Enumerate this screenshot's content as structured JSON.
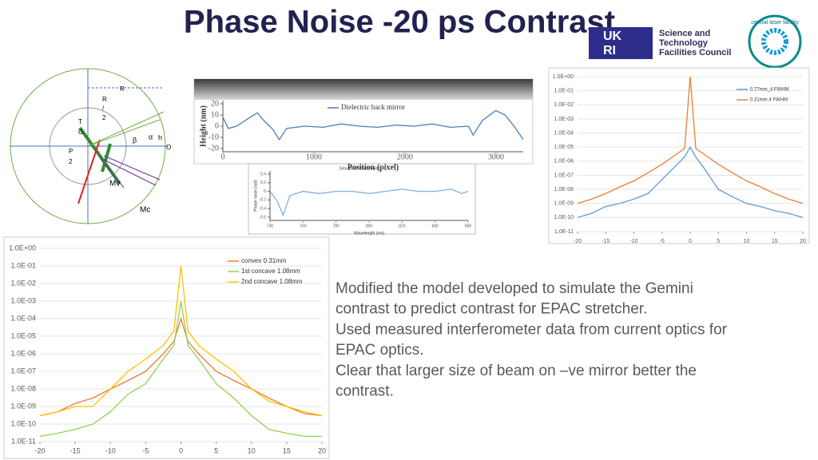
{
  "title": "Phase Noise -20 ps Contrast",
  "logos": {
    "ukri": [
      "UK",
      "RI"
    ],
    "stfc": [
      "Science and",
      "Technology",
      "Facilities Council"
    ],
    "clf": "central laser facility"
  },
  "diagram": {
    "labels": [
      "R",
      "R",
      "/",
      "2",
      "T",
      "G",
      "P",
      "2",
      "O",
      "Mv",
      "Mc",
      "β",
      "α",
      "h"
    ]
  },
  "text": [
    "Modified the model developed to simulate the Gemini",
    "contrast to predict contrast for EPAC stretcher.",
    "Used measured interferometer data from current optics for",
    "EPAC optics.",
    "Clear that larger size of beam on –ve mirror better the",
    "contrast."
  ],
  "chart_data": [
    {
      "type": "line",
      "log_y": true,
      "grid": true,
      "legend": "upper right",
      "x": [
        -20,
        -17.5,
        -15,
        -12.5,
        -10,
        -7.5,
        -5,
        -2.5,
        -1,
        0,
        1,
        2.5,
        5,
        7.5,
        10,
        12.5,
        15,
        17.5,
        20
      ],
      "series": [
        {
          "name": "convex 0.31mm",
          "color": "#ed7d31",
          "values": [
            3e-10,
            5e-10,
            1.5e-09,
            3e-09,
            1e-08,
            3e-08,
            1e-07,
            1e-06,
            5e-06,
            0.0001,
            5e-06,
            1e-06,
            1e-07,
            3e-08,
            1e-08,
            3e-09,
            1e-09,
            4e-10,
            3e-10
          ]
        },
        {
          "name": "1st concave 1.08mm",
          "color": "#92d050",
          "values": [
            2e-11,
            3e-11,
            5e-11,
            1e-10,
            5e-10,
            5e-09,
            2e-08,
            5e-07,
            3e-06,
            0.001,
            3e-06,
            5e-07,
            2e-08,
            3e-09,
            3e-10,
            5e-11,
            3e-11,
            2e-11,
            2e-11
          ]
        },
        {
          "name": "2nd concave 1.08mm",
          "color": "#ffc000",
          "values": [
            3e-10,
            5e-10,
            1e-09,
            1e-09,
            1e-08,
            1e-07,
            5e-07,
            3e-06,
            2e-05,
            0.1,
            2e-05,
            3e-06,
            5e-07,
            1e-07,
            1e-08,
            2e-09,
            1e-09,
            5e-10,
            3e-10
          ]
        }
      ],
      "xlim": [
        -20,
        20
      ],
      "xticks": [
        -20,
        -15,
        -10,
        -5,
        0,
        5,
        10,
        15,
        20
      ],
      "ylim": [
        1e-11,
        1
      ],
      "yticks": [
        {
          "value": 1,
          "label": "1.0E+00"
        },
        {
          "value": 0.1,
          "label": "1.0E-01"
        },
        {
          "value": 0.01,
          "label": "1.0E-02"
        },
        {
          "value": 0.001,
          "label": "1.0E-03"
        },
        {
          "value": 0.0001,
          "label": "1.0E-04"
        },
        {
          "value": 1e-05,
          "label": "1.0E-05"
        },
        {
          "value": 1e-06,
          "label": "1.0E-06"
        },
        {
          "value": 1e-07,
          "label": "1.0E-07"
        },
        {
          "value": 1e-08,
          "label": "1.0E-08"
        },
        {
          "value": 1e-09,
          "label": "1.0E-09"
        },
        {
          "value": 1e-10,
          "label": "1.0E-10"
        },
        {
          "value": 1e-11,
          "label": "1.0E-11"
        }
      ]
    },
    {
      "type": "line",
      "log_y": true,
      "grid": true,
      "legend": "upper right",
      "x": [
        -20,
        -17.5,
        -15,
        -12.5,
        -10,
        -7.5,
        -5,
        -2.5,
        -1,
        0,
        1,
        2.5,
        5,
        7.5,
        10,
        12.5,
        15,
        17.5,
        20
      ],
      "series": [
        {
          "name": "0.77mm_4 FWHM",
          "color": "#5b9bd5",
          "values": [
            1e-10,
            2e-10,
            6e-10,
            1e-09,
            2e-09,
            5e-09,
            5e-08,
            5e-07,
            2e-06,
            1e-05,
            2e-06,
            3e-07,
            1e-08,
            3e-09,
            1e-09,
            6e-10,
            3e-10,
            2e-10,
            1e-10
          ]
        },
        {
          "name": "0.31mm 4 FWHM",
          "color": "#ed7d31",
          "values": [
            1e-09,
            2e-09,
            5e-09,
            1.5e-08,
            4e-08,
            1.5e-07,
            6e-07,
            3e-06,
            8e-06,
            1,
            8e-06,
            3e-06,
            6e-07,
            1.5e-07,
            4e-08,
            1.5e-08,
            5e-09,
            2e-09,
            1e-09
          ]
        }
      ],
      "xlim": [
        -20,
        20
      ],
      "xticks": [
        -20,
        -15,
        -10,
        -5,
        0,
        5,
        10,
        15,
        20
      ],
      "ylim": [
        1e-11,
        1
      ],
      "yticks": [
        {
          "value": 1,
          "label": "1.0E+00"
        },
        {
          "value": 0.1,
          "label": "1.0E-01"
        },
        {
          "value": 0.01,
          "label": "1.0E-02"
        },
        {
          "value": 0.001,
          "label": "1.0E-03"
        },
        {
          "value": 0.0001,
          "label": "1.0E-04"
        },
        {
          "value": 1e-05,
          "label": "1.0E-05"
        },
        {
          "value": 1e-06,
          "label": "1.0E-06"
        },
        {
          "value": 1e-07,
          "label": "1.0E-07"
        },
        {
          "value": 1e-08,
          "label": "1.0E-08"
        },
        {
          "value": 1e-09,
          "label": "1.0E-09"
        },
        {
          "value": 1e-10,
          "label": "1.0E-10"
        },
        {
          "value": 1e-11,
          "label": "1.0E-11"
        }
      ]
    },
    {
      "type": "line",
      "log_y": false,
      "grid": false,
      "legend": "upper center",
      "x_label": "Position (pixel)",
      "y_label": "Height (nm)",
      "x": [
        0,
        60,
        150,
        300,
        380,
        450,
        550,
        620,
        700,
        900,
        1100,
        1300,
        1500,
        1700,
        1900,
        2100,
        2300,
        2500,
        2700,
        2750,
        2850,
        3000,
        3100,
        3200,
        3300
      ],
      "series": [
        {
          "name": "Dielectric back mirror",
          "color": "#4a7ebb",
          "values": [
            8,
            -2,
            0,
            8,
            12,
            5,
            -3,
            -12,
            -2,
            0,
            -1,
            2,
            0,
            -1,
            1,
            0,
            2,
            -1,
            0,
            -8,
            5,
            14,
            10,
            0,
            -12
          ]
        }
      ],
      "xlim": [
        0,
        3300
      ],
      "xticks": [
        0,
        1000,
        2000,
        3000
      ],
      "ylim": [
        -20,
        20
      ],
      "yticks": [
        20,
        10,
        0,
        -10,
        -20
      ]
    },
    {
      "type": "line",
      "log_y": false,
      "grid": false,
      "title": "Simulated Phase noise",
      "x_label": "Wavelength (nm)",
      "y_label": "Phase noise (rad)",
      "x": [
        740,
        744,
        748,
        752,
        760,
        770,
        780,
        790,
        800,
        810,
        820,
        830,
        840,
        850,
        856,
        860
      ],
      "series": [
        {
          "name": null,
          "color": "#7fb2d9",
          "values": [
            0,
            -0.2,
            -0.55,
            -0.1,
            0,
            -0.05,
            0,
            0,
            -0.05,
            0,
            0.05,
            0,
            0,
            0.05,
            -0.05,
            0
          ]
        }
      ],
      "xlim": [
        740,
        860
      ],
      "xticks": [
        740,
        760,
        780,
        800,
        820,
        840,
        860
      ],
      "ylim": [
        -0.6,
        0.4
      ],
      "yticks": [
        0.4,
        0.2,
        0,
        -0.2,
        -0.4,
        -0.6
      ]
    }
  ]
}
